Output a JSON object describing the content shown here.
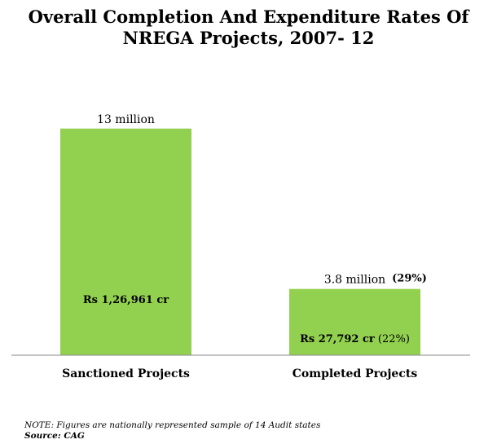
{
  "title_line1": "Overall Completion And Expenditure Rates Of",
  "title_line2": "NREGA Projects, 2007- 12",
  "note": "NOTE: Figures are nationally represented sample of 14 Audit states",
  "source": "Source: CAG",
  "colors": {
    "bar": "#92d050",
    "axis": "#888888"
  },
  "chart_data": {
    "type": "bar",
    "title": "Overall Completion And Expenditure Rates Of NREGA Projects, 2007- 12",
    "xlabel": "",
    "ylabel": "",
    "categories": [
      "Sanctioned Projects",
      "Completed Projects"
    ],
    "values": [
      13,
      3.8
    ],
    "unit": "million",
    "ylim": [
      0,
      15
    ],
    "grid": false,
    "value_labels": [
      "13 million",
      "3.8 million"
    ],
    "percent_labels": [
      "",
      "(29%)"
    ],
    "expenditure": [
      {
        "amount": "Rs 1,26,961  cr",
        "pct": ""
      },
      {
        "amount": "Rs 27,792  cr",
        "pct": "(22%)"
      }
    ]
  }
}
